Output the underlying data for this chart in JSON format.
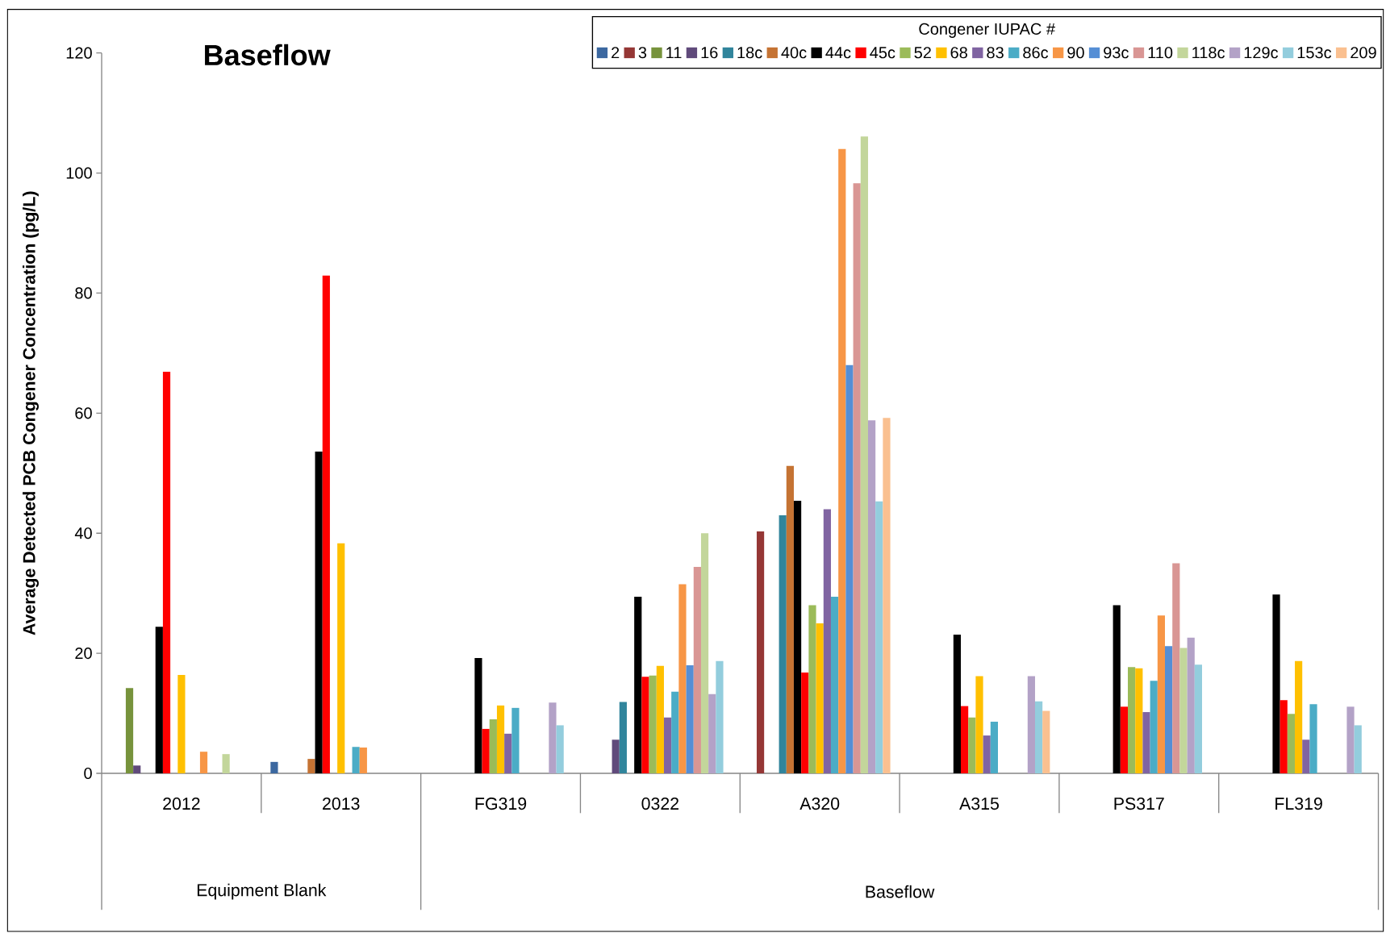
{
  "chart_data": {
    "type": "bar",
    "title": "Baseflow",
    "ylabel": "Average Detected PCB Congener Concentration (pg/L)",
    "legend_title": "Congener IUPAC #",
    "legend": "top right",
    "categories": [
      "2012",
      "2013",
      "FG319",
      "0322",
      "A320",
      "A315",
      "PS317",
      "FL319"
    ],
    "annotations": [
      "Equipment Blank",
      "Baseflow"
    ],
    "ylim": [
      0,
      120
    ],
    "yticks": [
      0,
      20,
      40,
      60,
      80,
      100,
      120
    ],
    "series": [
      {
        "name": "2",
        "color": "#3c68a0",
        "values": [
          null,
          1.9,
          null,
          null,
          null,
          null,
          null,
          null
        ]
      },
      {
        "name": "3",
        "color": "#953735",
        "values": [
          null,
          null,
          null,
          null,
          40.3,
          null,
          null,
          null
        ]
      },
      {
        "name": "11",
        "color": "#77933c",
        "values": [
          14.2,
          null,
          null,
          null,
          null,
          null,
          null,
          null
        ]
      },
      {
        "name": "16",
        "color": "#604a7b",
        "values": [
          1.3,
          null,
          null,
          5.6,
          null,
          null,
          null,
          null
        ]
      },
      {
        "name": "18c",
        "color": "#31859c",
        "values": [
          null,
          null,
          null,
          11.9,
          43.0,
          null,
          null,
          null
        ]
      },
      {
        "name": "40c",
        "color": "#c57333",
        "values": [
          null,
          2.4,
          null,
          null,
          51.2,
          null,
          null,
          null
        ]
      },
      {
        "name": "44c",
        "color": "#000000",
        "values": [
          24.4,
          53.6,
          19.2,
          29.4,
          45.4,
          23.1,
          28.0,
          29.8
        ]
      },
      {
        "name": "45c",
        "color": "#ff0000",
        "values": [
          66.9,
          82.9,
          7.4,
          16.1,
          16.8,
          11.2,
          11.1,
          12.2
        ]
      },
      {
        "name": "52",
        "color": "#9bbb59",
        "values": [
          null,
          null,
          9.0,
          16.3,
          28.0,
          9.3,
          17.7,
          9.9
        ]
      },
      {
        "name": "68",
        "color": "#ffc000",
        "values": [
          16.4,
          38.3,
          11.3,
          17.9,
          25.0,
          16.2,
          17.5,
          18.7
        ]
      },
      {
        "name": "83",
        "color": "#8064a2",
        "values": [
          null,
          null,
          6.6,
          9.3,
          44.0,
          6.3,
          10.2,
          5.6
        ]
      },
      {
        "name": "86c",
        "color": "#4bacc6",
        "values": [
          null,
          4.4,
          10.9,
          13.6,
          29.4,
          8.6,
          15.4,
          11.5
        ]
      },
      {
        "name": "90",
        "color": "#f79646",
        "values": [
          3.6,
          4.3,
          null,
          31.5,
          104.0,
          null,
          26.3,
          null
        ]
      },
      {
        "name": "93c",
        "color": "#558ed5",
        "values": [
          null,
          null,
          null,
          18.0,
          68.0,
          null,
          21.2,
          null
        ]
      },
      {
        "name": "110",
        "color": "#d99694",
        "values": [
          null,
          null,
          null,
          34.4,
          98.3,
          null,
          35.0,
          null
        ]
      },
      {
        "name": "118c",
        "color": "#c3d69b",
        "values": [
          3.2,
          null,
          null,
          40.0,
          106.1,
          null,
          20.9,
          null
        ]
      },
      {
        "name": "129c",
        "color": "#b3a2c7",
        "values": [
          null,
          null,
          11.8,
          13.2,
          58.8,
          16.2,
          22.6,
          11.1
        ]
      },
      {
        "name": "153c",
        "color": "#93cddd",
        "values": [
          null,
          null,
          8.0,
          18.7,
          45.3,
          12.0,
          18.1,
          8.0
        ]
      },
      {
        "name": "209",
        "color": "#fac090",
        "values": [
          null,
          null,
          null,
          null,
          59.2,
          10.4,
          null,
          null
        ]
      }
    ]
  }
}
